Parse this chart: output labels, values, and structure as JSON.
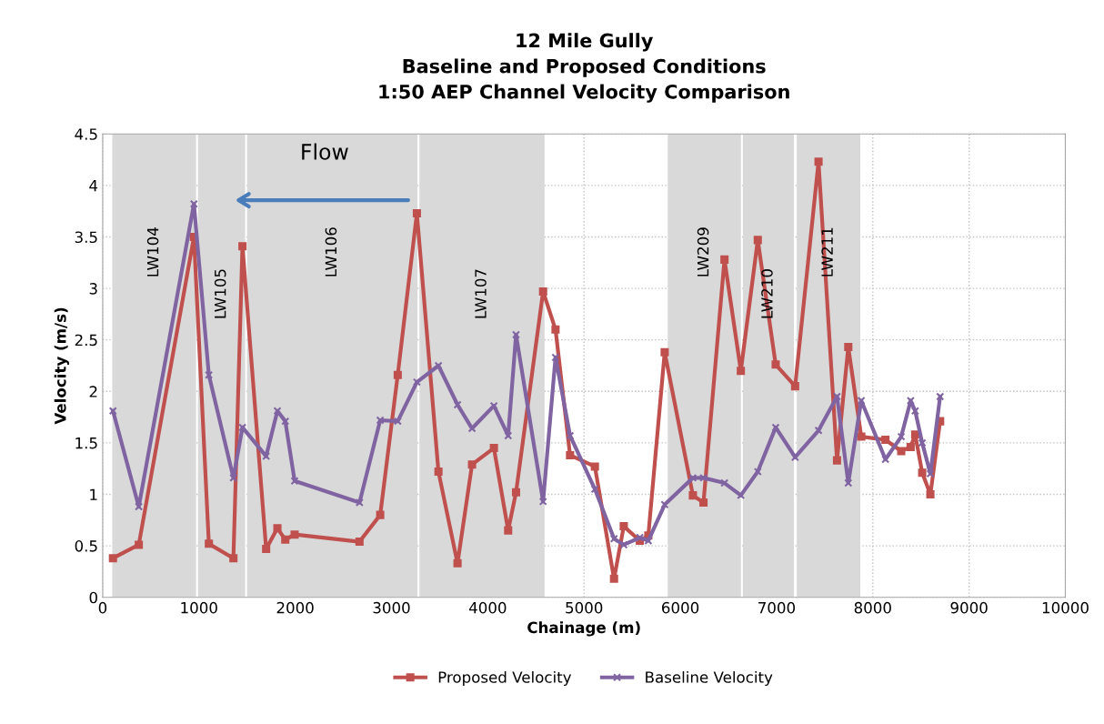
{
  "chart_data": {
    "type": "line",
    "title": "12 Mile Gully\nBaseline and Proposed Conditions\n1:50 AEP Channel Velocity Comparison",
    "xlabel": "Chainage (m)",
    "ylabel": "Velocity (m/s)",
    "x": [
      107,
      375,
      948,
      1103,
      1358,
      1452,
      1698,
      1815,
      1897,
      1994,
      2668,
      2883,
      3065,
      3264,
      3488,
      3686,
      3837,
      4064,
      4212,
      4294,
      4575,
      4704,
      4855,
      5113,
      5312,
      5413,
      5580,
      5668,
      5838,
      6131,
      6241,
      6459,
      6629,
      6805,
      6991,
      7193,
      7436,
      7628,
      7745,
      7880,
      8131,
      8295,
      8393,
      8440,
      8513,
      8598,
      8699
    ],
    "series": [
      {
        "name": "Proposed Velocity",
        "color": "#c0504d",
        "marker": "square",
        "values": [
          0.38,
          0.51,
          3.5,
          0.52,
          0.38,
          3.41,
          0.47,
          0.67,
          0.56,
          0.61,
          0.54,
          0.8,
          2.16,
          3.73,
          1.22,
          0.33,
          1.29,
          1.45,
          0.65,
          1.02,
          2.97,
          2.6,
          1.38,
          1.27,
          0.18,
          0.69,
          0.55,
          0.6,
          2.38,
          0.99,
          0.92,
          3.28,
          2.2,
          3.47,
          2.26,
          2.05,
          4.23,
          1.33,
          2.43,
          1.56,
          1.53,
          1.42,
          1.46,
          1.58,
          1.21,
          1.0,
          1.71
        ]
      },
      {
        "name": "Baseline Velocity",
        "color": "#8064a2",
        "marker": "cross",
        "values": [
          1.81,
          0.88,
          3.82,
          2.16,
          1.16,
          1.65,
          1.37,
          1.81,
          1.71,
          1.13,
          0.92,
          1.72,
          1.71,
          2.09,
          2.25,
          1.87,
          1.64,
          1.86,
          1.57,
          2.55,
          0.93,
          2.33,
          1.57,
          1.05,
          0.57,
          0.51,
          0.58,
          0.55,
          0.9,
          1.16,
          1.16,
          1.11,
          0.99,
          1.22,
          1.65,
          1.36,
          1.62,
          1.95,
          1.11,
          1.91,
          1.34,
          1.56,
          1.91,
          1.81,
          1.5,
          1.2,
          1.95
        ]
      }
    ],
    "xlim": [
      0,
      10000
    ],
    "xticks": [
      0,
      1000,
      2000,
      3000,
      4000,
      5000,
      6000,
      7000,
      8000,
      9000,
      10000
    ],
    "ylim": [
      0,
      4.5
    ],
    "yticks": [
      0,
      0.5,
      1,
      1.5,
      2,
      2.5,
      3,
      3.5,
      4,
      4.5
    ],
    "bands": [
      {
        "axis": "x",
        "from": 100,
        "to": 970,
        "label": "LW104",
        "color": "#d9d9d9"
      },
      {
        "axis": "x",
        "from": 990,
        "to": 1480,
        "label": "LW105",
        "color": "#d9d9d9"
      },
      {
        "axis": "x",
        "from": 1500,
        "to": 3270,
        "label": "LW106",
        "color": "#d9d9d9"
      },
      {
        "axis": "x",
        "from": 3290,
        "to": 4590,
        "label": "LW107",
        "color": "#d9d9d9"
      },
      {
        "axis": "x",
        "from": 5870,
        "to": 6630,
        "label": "LW209",
        "color": "#d9d9d9"
      },
      {
        "axis": "x",
        "from": 6650,
        "to": 7180,
        "label": "LW210",
        "color": "#d9d9d9"
      },
      {
        "axis": "x",
        "from": 7210,
        "to": 7870,
        "label": "LW211",
        "color": "#d9d9d9"
      }
    ],
    "annotations": [
      "Flow"
    ],
    "grid": true,
    "legend": "bottom",
    "line_style": "solid"
  }
}
